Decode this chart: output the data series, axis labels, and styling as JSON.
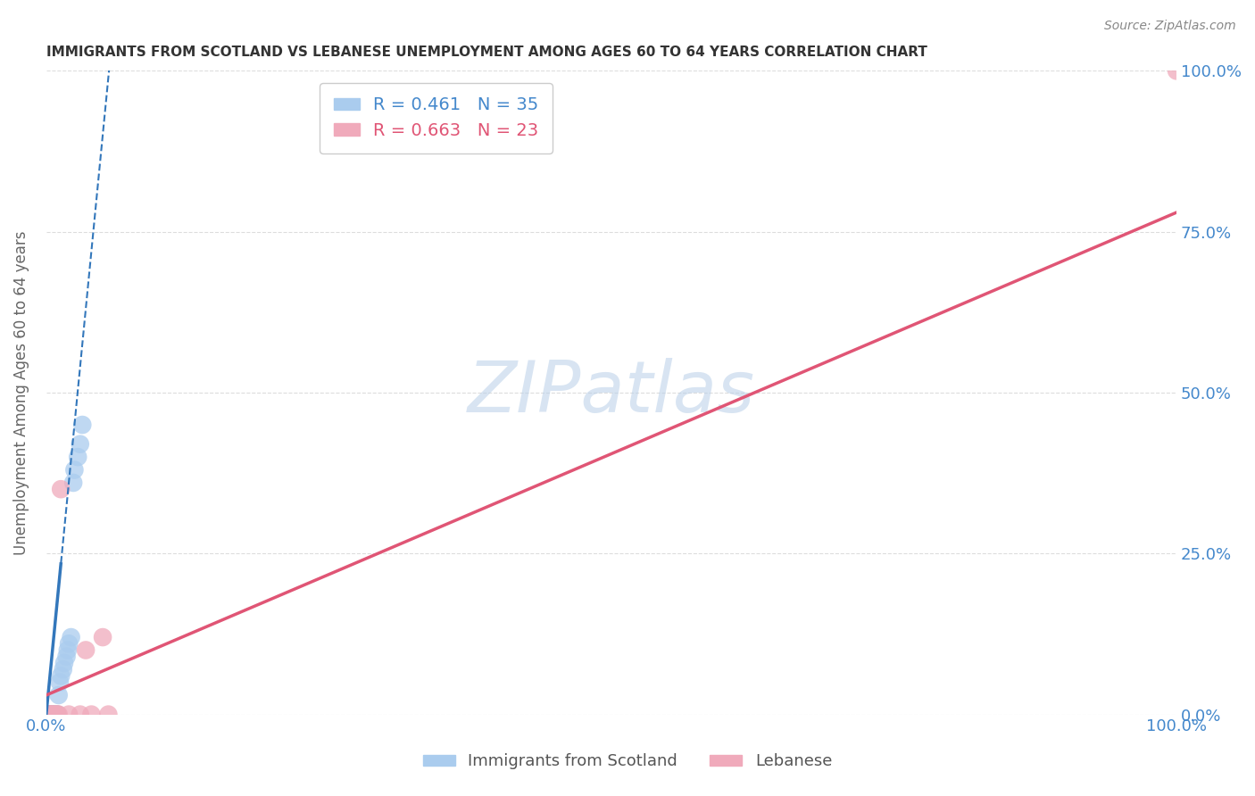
{
  "title": "IMMIGRANTS FROM SCOTLAND VS LEBANESE UNEMPLOYMENT AMONG AGES 60 TO 64 YEARS CORRELATION CHART",
  "source": "Source: ZipAtlas.com",
  "ylabel": "Unemployment Among Ages 60 to 64 years",
  "xlim": [
    0,
    1.0
  ],
  "ylim": [
    0,
    1.0
  ],
  "ytick_positions": [
    0.0,
    0.25,
    0.5,
    0.75,
    1.0
  ],
  "ytick_labels": [
    "0.0%",
    "25.0%",
    "50.0%",
    "75.0%",
    "100.0%"
  ],
  "xtick_positions": [
    0.0,
    1.0
  ],
  "xtick_labels": [
    "0.0%",
    "100.0%"
  ],
  "watermark_text": "ZIPatlas",
  "legend_1_label": "R = 0.461   N = 35",
  "legend_2_label": "R = 0.663   N = 23",
  "scotland_color": "#aaccee",
  "lebanon_color": "#f0aabb",
  "scotland_trend_color": "#3377bb",
  "lebanon_trend_color": "#e05575",
  "tick_color": "#4488cc",
  "title_color": "#333333",
  "grid_color": "#dddddd",
  "source_color": "#888888",
  "legend_text_color_1": "#4488cc",
  "legend_text_color_2": "#e05575",
  "bottom_legend_color": "#555555",
  "scotland_points": [
    [
      0.0,
      0.0
    ],
    [
      0.0,
      0.0
    ],
    [
      0.0,
      0.0
    ],
    [
      0.0,
      0.0
    ],
    [
      0.0,
      0.0
    ],
    [
      0.001,
      0.0
    ],
    [
      0.001,
      0.0
    ],
    [
      0.001,
      0.0
    ],
    [
      0.002,
      0.0
    ],
    [
      0.002,
      0.0
    ],
    [
      0.003,
      0.0
    ],
    [
      0.003,
      0.0
    ],
    [
      0.004,
      0.0
    ],
    [
      0.004,
      0.0
    ],
    [
      0.005,
      0.0
    ],
    [
      0.005,
      0.0
    ],
    [
      0.006,
      0.0
    ],
    [
      0.007,
      0.0
    ],
    [
      0.008,
      0.0
    ],
    [
      0.009,
      0.0
    ],
    [
      0.01,
      0.0
    ],
    [
      0.011,
      0.03
    ],
    [
      0.012,
      0.05
    ],
    [
      0.013,
      0.06
    ],
    [
      0.015,
      0.07
    ],
    [
      0.016,
      0.08
    ],
    [
      0.018,
      0.09
    ],
    [
      0.019,
      0.1
    ],
    [
      0.02,
      0.11
    ],
    [
      0.022,
      0.12
    ],
    [
      0.024,
      0.36
    ],
    [
      0.025,
      0.38
    ],
    [
      0.028,
      0.4
    ],
    [
      0.03,
      0.42
    ],
    [
      0.032,
      0.45
    ]
  ],
  "lebanon_points": [
    [
      0.0,
      0.0
    ],
    [
      0.0,
      0.0
    ],
    [
      0.0,
      0.0
    ],
    [
      0.0,
      0.0
    ],
    [
      0.001,
      0.0
    ],
    [
      0.001,
      0.0
    ],
    [
      0.002,
      0.0
    ],
    [
      0.003,
      0.0
    ],
    [
      0.004,
      0.0
    ],
    [
      0.005,
      0.0
    ],
    [
      0.006,
      0.0
    ],
    [
      0.007,
      0.0
    ],
    [
      0.009,
      0.0
    ],
    [
      0.01,
      0.0
    ],
    [
      0.011,
      0.0
    ],
    [
      0.013,
      0.35
    ],
    [
      0.02,
      0.0
    ],
    [
      0.03,
      0.0
    ],
    [
      0.035,
      0.1
    ],
    [
      0.04,
      0.0
    ],
    [
      0.05,
      0.12
    ],
    [
      0.055,
      0.0
    ],
    [
      1.0,
      1.0
    ]
  ],
  "scotland_trend": {
    "x_start": 0.0,
    "x_end": 0.032,
    "slope": 14.0,
    "intercept": -0.003
  },
  "scotland_trend_dashed": {
    "x_start": 0.008,
    "x_end": 0.028,
    "slope": 14.0,
    "intercept": -0.003
  },
  "lebanon_trend": {
    "x_start": 0.0,
    "x_end": 1.0,
    "slope": 0.75,
    "intercept": 0.0
  }
}
